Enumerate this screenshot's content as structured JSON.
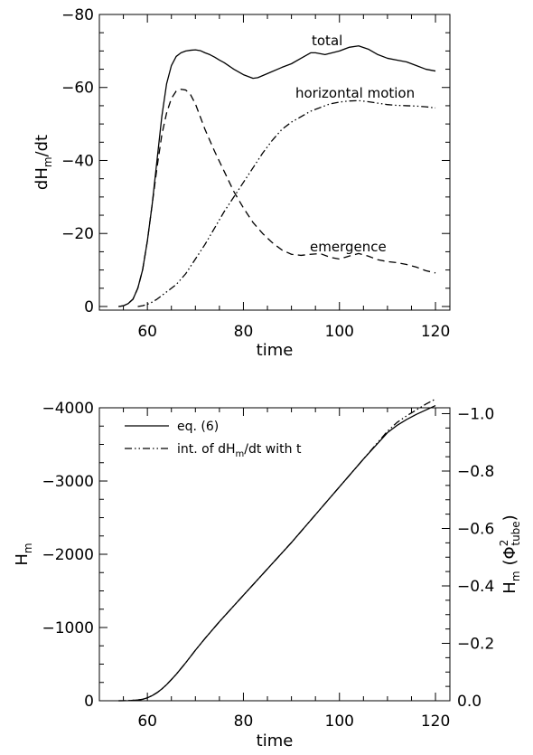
{
  "chart_data": [
    {
      "type": "line",
      "xlabel": "time",
      "ylabel_main": "dH",
      "ylabel_sub": "m",
      "ylabel_tail": "/dt",
      "xlim": [
        50,
        123
      ],
      "ylim": [
        1,
        -80
      ],
      "x_ticks": [
        60,
        80,
        100,
        120
      ],
      "y_ticks": [
        0,
        -20,
        -40,
        -60,
        -80
      ],
      "y_tick_labels": [
        "0",
        "−20",
        "−40",
        "−60",
        "−80"
      ],
      "grid": false,
      "annotations": [
        {
          "text": "total",
          "series": 0
        },
        {
          "text": "horizontal motion",
          "series": 2
        },
        {
          "text": "emergence",
          "series": 1
        }
      ],
      "series": [
        {
          "name": "total",
          "style": "solid",
          "x": [
            54,
            55,
            56,
            57,
            58,
            59,
            60,
            61,
            62,
            63,
            64,
            65,
            66,
            67,
            68,
            69,
            70,
            71,
            72,
            73,
            74,
            75,
            76,
            78,
            80,
            82,
            83,
            85,
            88,
            90,
            92,
            94,
            95,
            97,
            100,
            102,
            104,
            106,
            108,
            110,
            112,
            114,
            116,
            118,
            120
          ],
          "y": [
            0,
            -0.2,
            -0.8,
            -2,
            -5,
            -10,
            -18,
            -28,
            -40,
            -52,
            -61,
            -66,
            -68.5,
            -69.5,
            -70,
            -70.2,
            -70.3,
            -70.1,
            -69.5,
            -69,
            -68.3,
            -67.5,
            -66.8,
            -65,
            -63.5,
            -62.5,
            -62.7,
            -63.8,
            -65.5,
            -66.5,
            -68,
            -69.5,
            -69.5,
            -69,
            -70,
            -71,
            -71.4,
            -70.5,
            -69,
            -68,
            -67.5,
            -67,
            -66,
            -65,
            -64.5
          ]
        },
        {
          "name": "emergence",
          "style": "dashed",
          "x": [
            54,
            55,
            56,
            57,
            58,
            59,
            60,
            61,
            62,
            63,
            64,
            65,
            66,
            67,
            68,
            69,
            70,
            71,
            72,
            74,
            76,
            78,
            80,
            82,
            84,
            86,
            88,
            90,
            92,
            94,
            96,
            98,
            100,
            102,
            104,
            106,
            108,
            110,
            112,
            114,
            116,
            118,
            120
          ],
          "y": [
            0,
            -0.2,
            -0.8,
            -2,
            -5,
            -10,
            -18,
            -28,
            -38,
            -47,
            -53,
            -57,
            -59,
            -59.5,
            -59.3,
            -58,
            -55.5,
            -52,
            -48.5,
            -42.5,
            -37,
            -31.5,
            -27,
            -23,
            -20,
            -17.5,
            -15.5,
            -14.3,
            -14,
            -14.3,
            -14.5,
            -13.5,
            -13,
            -13.8,
            -14.5,
            -13.8,
            -12.8,
            -12.3,
            -12,
            -11.5,
            -10.8,
            -9.8,
            -9.2
          ]
        },
        {
          "name": "horizontal motion",
          "style": "dash-dot-dot",
          "x": [
            58,
            59,
            60,
            61,
            62,
            63,
            64,
            66,
            68,
            70,
            72,
            74,
            76,
            78,
            80,
            82,
            84,
            86,
            88,
            90,
            92,
            94,
            96,
            98,
            100,
            102,
            104,
            106,
            108,
            110,
            112,
            114,
            116,
            118,
            120
          ],
          "y": [
            0,
            -0.2,
            -0.6,
            -1.2,
            -2,
            -3,
            -4,
            -6,
            -9,
            -13,
            -17,
            -21.5,
            -26,
            -30,
            -34,
            -38,
            -42,
            -45.5,
            -48.5,
            -50.5,
            -52,
            -53.5,
            -54.5,
            -55.5,
            -56,
            -56.3,
            -56.4,
            -56.1,
            -55.7,
            -55.3,
            -55.1,
            -55,
            -54.9,
            -54.7,
            -54.4
          ]
        }
      ]
    },
    {
      "type": "line",
      "xlabel": "time",
      "ylabel_main": "H",
      "ylabel_sub": "m",
      "ylabel_right_main": "H",
      "ylabel_right_sub": "m",
      "ylabel_right_tail": "(Φ",
      "ylabel_right_sup": "2",
      "ylabel_right_subsub": "tube",
      "ylabel_right_close": ")",
      "xlim": [
        50,
        123
      ],
      "ylim": [
        0,
        -4000
      ],
      "x_ticks": [
        60,
        80,
        100,
        120
      ],
      "y_ticks": [
        0,
        -1000,
        -2000,
        -3000,
        -4000
      ],
      "y_tick_labels": [
        "0",
        "−1000",
        "−2000",
        "−3000",
        "−4000"
      ],
      "y_right_ticks": [
        0.0,
        -0.2,
        -0.4,
        -0.6,
        -0.8,
        -1.0
      ],
      "y_right_tick_labels": [
        "0.0",
        "−0.2",
        "−0.4",
        "−0.6",
        "−0.8",
        "−1.0"
      ],
      "y_right_per_unit": 3920,
      "grid": false,
      "legend_position": "top-left",
      "legend": [
        {
          "label": "eq. (6)",
          "style": "solid"
        },
        {
          "label_pre": "int. of dH",
          "label_sub": "m",
          "label_post": "/dt with t",
          "style": "dash-dot-dot"
        }
      ],
      "series": [
        {
          "name": "eq. (6)",
          "style": "solid",
          "x": [
            54,
            56,
            58,
            59,
            60,
            61,
            62,
            63,
            64,
            65,
            66,
            68,
            70,
            72,
            75,
            80,
            85,
            90,
            95,
            100,
            105,
            110,
            112,
            114,
            116,
            118,
            120
          ],
          "y": [
            0,
            -2,
            -10,
            -20,
            -40,
            -70,
            -110,
            -160,
            -220,
            -290,
            -360,
            -520,
            -690,
            -850,
            -1080,
            -1440,
            -1800,
            -2160,
            -2540,
            -2920,
            -3300,
            -3660,
            -3760,
            -3840,
            -3910,
            -3970,
            -4030
          ]
        },
        {
          "name": "int. of dHm/dt with t",
          "style": "dash-dot-dot",
          "x": [
            54,
            56,
            58,
            59,
            60,
            61,
            62,
            63,
            64,
            65,
            66,
            68,
            70,
            72,
            75,
            80,
            85,
            90,
            95,
            100,
            105,
            110,
            112,
            114,
            116,
            118,
            120
          ],
          "y": [
            0,
            -2,
            -10,
            -20,
            -40,
            -70,
            -110,
            -160,
            -220,
            -290,
            -360,
            -520,
            -690,
            -850,
            -1080,
            -1440,
            -1800,
            -2160,
            -2540,
            -2920,
            -3300,
            -3680,
            -3800,
            -3890,
            -3970,
            -4050,
            -4120
          ]
        }
      ]
    }
  ]
}
